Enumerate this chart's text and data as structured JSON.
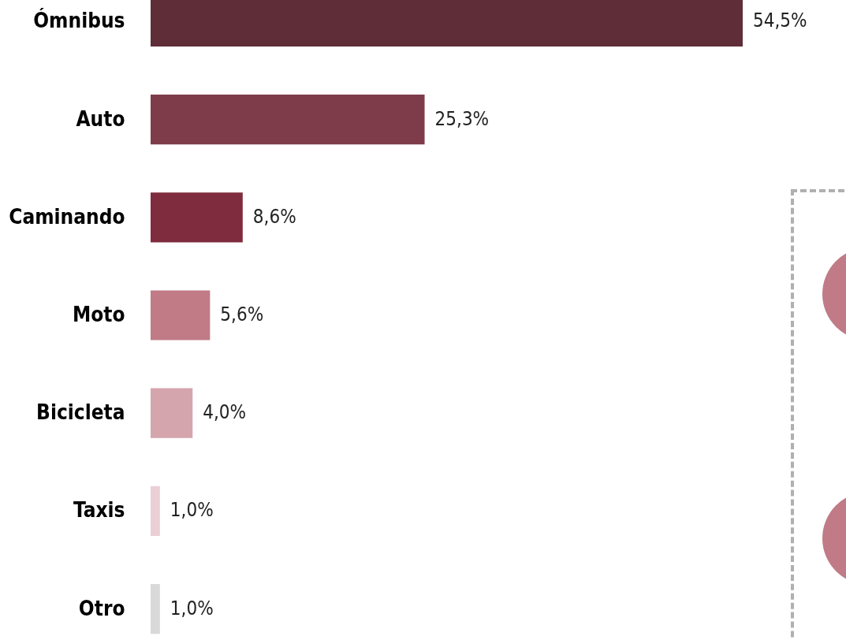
{
  "chart_data": {
    "type": "bar",
    "orientation": "horizontal",
    "categories": [
      "Ómnibus",
      "Auto",
      "Caminando",
      "Moto",
      "Bicicleta",
      "Taxis",
      "Otro"
    ],
    "values": [
      54.5,
      25.3,
      8.6,
      5.6,
      4.0,
      1.0,
      1.0
    ],
    "colors": [
      "#5e2d38",
      "#7e3c4a",
      "#7f2c3e",
      "#c07b86",
      "#d5a5ad",
      "#ead0d6",
      "#d9d9d9"
    ],
    "value_labels": [
      "54,5%",
      "25,3%",
      "8,6%",
      "5,6%",
      "4,0%",
      "1,0%",
      "1,0%"
    ],
    "grid": false,
    "legend": false
  }
}
